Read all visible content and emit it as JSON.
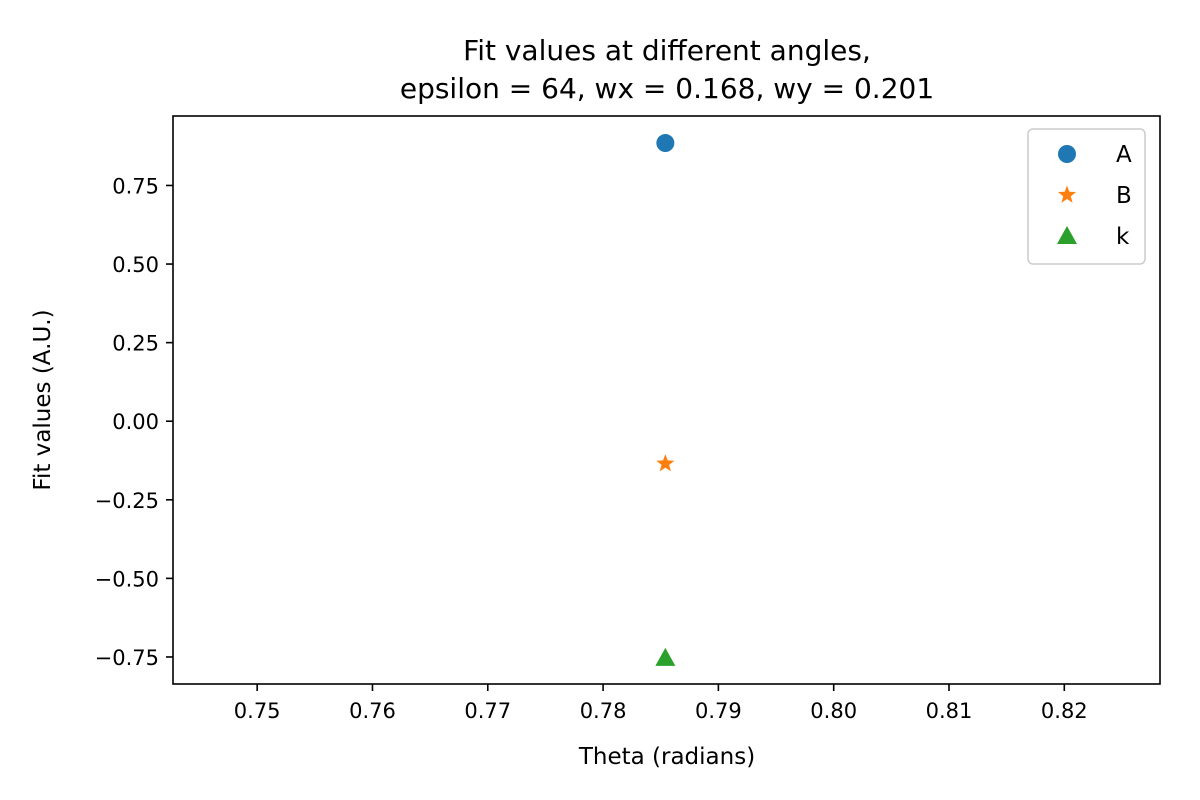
{
  "chart_data": {
    "type": "scatter",
    "title_line1": "Fit values at different angles,",
    "title_line2": "epsilon = 64, wx = 0.168, wy = 0.201",
    "xlabel": "Theta (radians)",
    "ylabel": "Fit values (A.U.)",
    "xlim": [
      0.7427,
      0.8283
    ],
    "ylim": [
      -0.836,
      0.971
    ],
    "xticks": [
      0.75,
      0.76,
      0.77,
      0.78,
      0.79,
      0.8,
      0.81,
      0.82
    ],
    "xtick_labels": [
      "0.75",
      "0.76",
      "0.77",
      "0.78",
      "0.79",
      "0.80",
      "0.81",
      "0.82"
    ],
    "yticks": [
      0.75,
      0.5,
      0.25,
      0.0,
      -0.25,
      -0.5,
      -0.75
    ],
    "ytick_labels": [
      "0.75",
      "0.50",
      "0.25",
      "0.00",
      "−0.25",
      "−0.50",
      "−0.75"
    ],
    "grid": false,
    "legend_position": "top-right",
    "series": [
      {
        "name": "A",
        "marker": "circle",
        "color": "#1f77b4",
        "x": [
          0.7854
        ],
        "y": [
          0.885
        ]
      },
      {
        "name": "B",
        "marker": "star",
        "color": "#ff7f0e",
        "x": [
          0.7854
        ],
        "y": [
          -0.135
        ]
      },
      {
        "name": "k",
        "marker": "triangle",
        "color": "#2ca02c",
        "x": [
          0.7854
        ],
        "y": [
          -0.753
        ]
      }
    ]
  }
}
